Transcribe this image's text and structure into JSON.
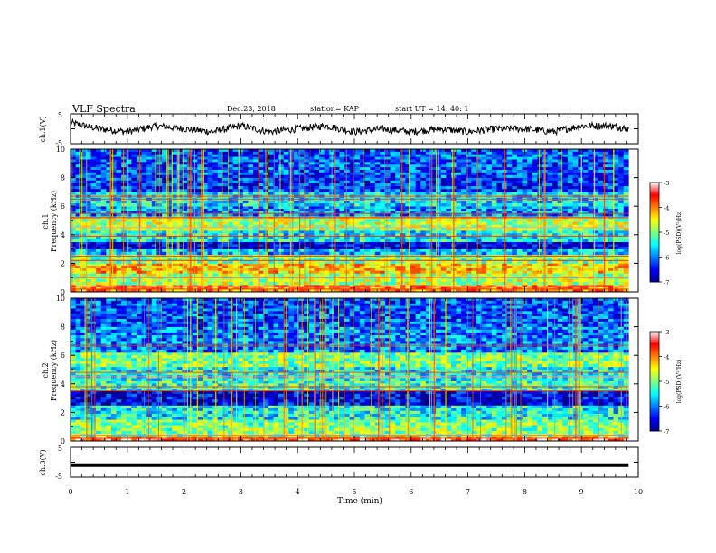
{
  "header": {
    "title": "VLF Spectra",
    "date": "Dec.23, 2018",
    "station": "station= KAP",
    "start": "start  UT =   14: 40: 1"
  },
  "colors": {
    "axis": "#000000",
    "bg": "#ffffff",
    "colormap": [
      "#00008f",
      "#0000ff",
      "#0080ff",
      "#00ffff",
      "#80ff80",
      "#ffff00",
      "#ff8000",
      "#ff0000",
      "#ffffff"
    ]
  },
  "chart_data": [
    {
      "type": "line",
      "panel": "ch1-waveform",
      "ylabel": "ch.1(V)",
      "yticklabels": [
        "5",
        "-5"
      ],
      "ylim": [
        -5,
        5
      ],
      "xlim": [
        0,
        10
      ],
      "series": [
        {
          "x": [
            0,
            0.5,
            1,
            1.5,
            2,
            2.5,
            3,
            3.5,
            4,
            4.5,
            5,
            5.5,
            6,
            6.5,
            7,
            7.5,
            8,
            8.5,
            9,
            9.5,
            9.83
          ],
          "values": [
            2,
            0,
            -1,
            1,
            0,
            -1,
            1,
            -1,
            0,
            1,
            -1,
            0,
            -1,
            0,
            -1,
            0,
            0,
            -1,
            1,
            1,
            0
          ]
        }
      ]
    },
    {
      "type": "heatmap",
      "panel": "ch1-spectrogram",
      "ylabel": "ch.1\nFrequency  (kHz)",
      "yticks": [
        0,
        2,
        4,
        6,
        8,
        10
      ],
      "ylim": [
        0,
        10
      ],
      "xlim": [
        0,
        10
      ],
      "data_xmax": 9.83,
      "colorbar": {
        "label": "log(PSD)(V²/Hz)",
        "ticks": [
          "-3",
          "-4",
          "-5",
          "-6",
          "-7"
        ],
        "range": [
          -7,
          -3
        ]
      },
      "bands": [
        {
          "f": [
            0,
            0.5
          ],
          "level": -4.0
        },
        {
          "f": [
            0.5,
            1.3
          ],
          "level": -4.8
        },
        {
          "f": [
            1.3,
            2.0
          ],
          "level": -4.3
        },
        {
          "f": [
            2.0,
            2.6
          ],
          "level": -5.0
        },
        {
          "f": [
            2.6,
            3.0
          ],
          "level": -5.8
        },
        {
          "f": [
            3.0,
            3.5
          ],
          "level": -6.7
        },
        {
          "f": [
            3.5,
            4.3
          ],
          "level": -5.5
        },
        {
          "f": [
            4.3,
            5.3
          ],
          "level": -4.8
        },
        {
          "f": [
            5.3,
            6.0
          ],
          "level": -5.9
        },
        {
          "f": [
            6.0,
            7.0
          ],
          "level": -5.6
        },
        {
          "f": [
            7.0,
            8.0
          ],
          "level": -6.3
        },
        {
          "f": [
            8.0,
            10.0
          ],
          "level": -6.2
        }
      ],
      "lines_khz": [
        0.2,
        0.4,
        1.0,
        2.2,
        2.5,
        3.9,
        4.5,
        5.2,
        5.5,
        6.5,
        6.7
      ]
    },
    {
      "type": "heatmap",
      "panel": "ch2-spectrogram",
      "ylabel": "ch.2\nFrequency  (kHz)",
      "yticks": [
        0,
        2,
        4,
        6,
        8,
        10
      ],
      "ylim": [
        0,
        10
      ],
      "xlim": [
        0,
        10
      ],
      "data_xmax": 9.83,
      "colorbar": {
        "label": "log(PSD)(V²/Hz)",
        "ticks": [
          "-3",
          "-4",
          "-5",
          "-6",
          "-7"
        ],
        "range": [
          -7,
          -3
        ]
      },
      "bands": [
        {
          "f": [
            0,
            0.3
          ],
          "level": -3.5
        },
        {
          "f": [
            0.3,
            1.5
          ],
          "level": -5.0
        },
        {
          "f": [
            1.5,
            2.5
          ],
          "level": -5.5
        },
        {
          "f": [
            2.5,
            3.5
          ],
          "level": -6.6
        },
        {
          "f": [
            3.5,
            4.2
          ],
          "level": -5.3
        },
        {
          "f": [
            4.2,
            5.2
          ],
          "level": -5.5
        },
        {
          "f": [
            5.2,
            6.2
          ],
          "level": -5.0
        },
        {
          "f": [
            6.2,
            8.0
          ],
          "level": -6.0
        },
        {
          "f": [
            8.0,
            10.0
          ],
          "level": -6.2
        }
      ],
      "lines_khz": [
        0.2,
        0.4,
        3.5,
        3.8,
        4.5,
        4.8,
        6.7
      ]
    },
    {
      "type": "line",
      "panel": "ch3-waveform",
      "ylabel": "ch.3(V)",
      "yticklabels": [
        "5",
        "-5"
      ],
      "ylim": [
        -5,
        5
      ],
      "xlim": [
        0,
        10
      ],
      "series": [
        {
          "x": [
            0,
            9.83
          ],
          "values": [
            -1,
            -1
          ]
        }
      ]
    }
  ],
  "xaxis": {
    "label": "Time  (min)",
    "ticks": [
      "0",
      "1",
      "2",
      "3",
      "4",
      "5",
      "6",
      "7",
      "8",
      "9",
      "10"
    ]
  }
}
